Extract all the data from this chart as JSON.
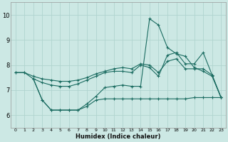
{
  "xlabel": "Humidex (Indice chaleur)",
  "bg_color": "#cce8e4",
  "grid_color": "#b0d4cf",
  "line_color": "#1a6b60",
  "xlim": [
    -0.5,
    23.5
  ],
  "ylim": [
    5.5,
    10.5
  ],
  "xticks": [
    0,
    1,
    2,
    3,
    4,
    5,
    6,
    7,
    8,
    9,
    10,
    11,
    12,
    13,
    14,
    15,
    16,
    17,
    18,
    19,
    20,
    21,
    22,
    23
  ],
  "yticks": [
    6,
    7,
    8,
    9,
    10
  ],
  "line1_x": [
    0,
    1,
    2,
    3,
    4,
    5,
    6,
    7,
    8,
    9,
    10,
    11,
    12,
    13,
    14,
    15,
    16,
    17,
    18,
    19,
    20,
    21,
    22,
    23
  ],
  "line1_y": [
    7.7,
    7.7,
    7.55,
    7.45,
    7.4,
    7.35,
    7.35,
    7.4,
    7.5,
    7.65,
    7.75,
    7.85,
    7.9,
    7.85,
    8.05,
    8.0,
    7.7,
    8.15,
    8.25,
    7.85,
    7.85,
    7.85,
    7.6,
    6.7
  ],
  "line2_x": [
    0,
    1,
    2,
    3,
    4,
    5,
    6,
    7,
    8,
    9,
    10,
    11,
    12,
    13,
    14,
    15,
    16,
    17,
    18,
    19,
    20,
    21,
    22,
    23
  ],
  "line2_y": [
    7.7,
    7.7,
    7.45,
    7.3,
    7.2,
    7.15,
    7.15,
    7.25,
    7.4,
    7.55,
    7.7,
    7.75,
    7.75,
    7.7,
    8.0,
    7.9,
    7.55,
    8.4,
    8.5,
    8.05,
    8.05,
    8.5,
    7.6,
    6.7
  ],
  "line3_x": [
    2,
    3,
    4,
    5,
    6,
    7,
    8,
    9,
    10,
    11,
    12,
    13,
    14,
    15,
    16,
    17,
    18,
    19,
    20,
    21,
    22,
    23
  ],
  "line3_y": [
    7.45,
    6.6,
    6.2,
    6.2,
    6.2,
    6.2,
    6.45,
    6.75,
    7.1,
    7.15,
    7.2,
    7.15,
    7.15,
    9.85,
    9.6,
    8.7,
    8.45,
    8.35,
    7.9,
    7.75,
    7.55,
    6.7
  ],
  "line4_x": [
    2,
    3,
    4,
    5,
    6,
    7,
    8,
    9,
    10,
    11,
    12,
    13,
    14,
    15,
    16,
    17,
    18,
    19,
    20,
    21,
    22,
    23
  ],
  "line4_y": [
    7.45,
    6.6,
    6.2,
    6.2,
    6.2,
    6.2,
    6.35,
    6.6,
    6.65,
    6.65,
    6.65,
    6.65,
    6.65,
    6.65,
    6.65,
    6.65,
    6.65,
    6.65,
    6.7,
    6.7,
    6.7,
    6.7
  ]
}
